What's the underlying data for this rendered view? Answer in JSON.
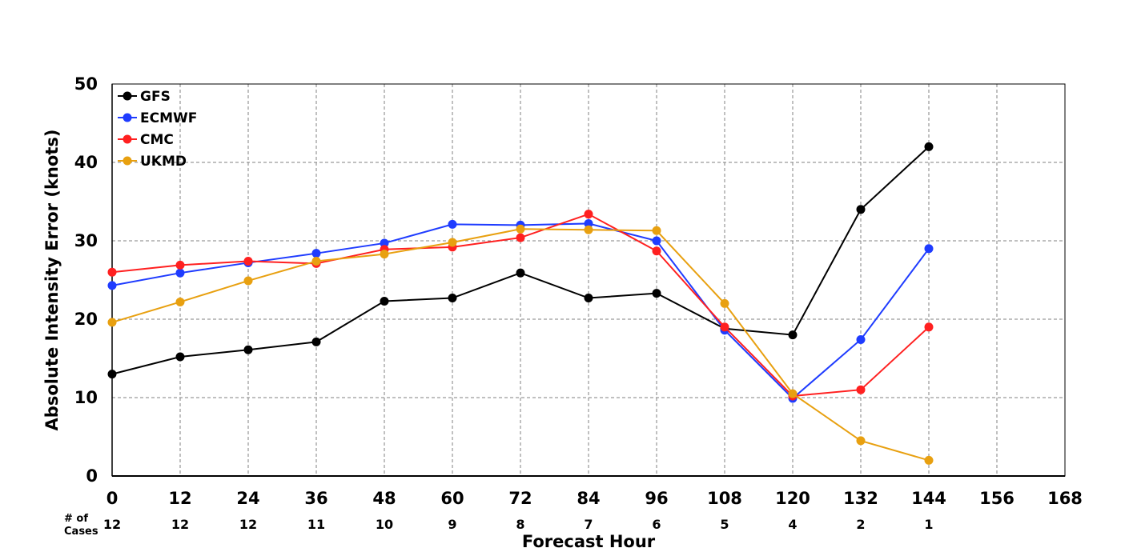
{
  "chart_data": {
    "type": "line",
    "title": "",
    "xlabel": "Forecast Hour",
    "ylabel": "Absolute Intensity Error (knots)",
    "xlim": [
      0,
      168
    ],
    "ylim": [
      0,
      50
    ],
    "x_ticks": [
      0,
      12,
      24,
      36,
      48,
      60,
      72,
      84,
      96,
      108,
      120,
      132,
      144,
      156,
      168
    ],
    "y_ticks": [
      0,
      10,
      20,
      30,
      40,
      50
    ],
    "grid": true,
    "legend_position": "top-left",
    "cases_label": [
      "# of",
      "Cases"
    ],
    "cases": [
      12,
      12,
      12,
      11,
      10,
      9,
      8,
      7,
      6,
      5,
      4,
      2,
      1
    ],
    "cases_x": [
      0,
      12,
      24,
      36,
      48,
      60,
      72,
      84,
      96,
      108,
      120,
      132,
      144
    ],
    "series": [
      {
        "name": "GFS",
        "color": "#000000",
        "x": [
          0,
          12,
          24,
          36,
          48,
          60,
          72,
          84,
          96,
          108,
          120,
          132,
          144
        ],
        "values": [
          13.0,
          15.2,
          16.1,
          17.1,
          22.3,
          22.7,
          25.9,
          22.7,
          23.3,
          18.8,
          18.0,
          34.0,
          42.0
        ]
      },
      {
        "name": "ECMWF",
        "color": "#1f3cff",
        "x": [
          0,
          12,
          24,
          36,
          48,
          60,
          72,
          84,
          96,
          108,
          120,
          132,
          144
        ],
        "values": [
          24.3,
          25.9,
          27.2,
          28.4,
          29.7,
          32.1,
          32.0,
          32.2,
          30.0,
          18.6,
          9.9,
          17.4,
          29.0
        ]
      },
      {
        "name": "CMC",
        "color": "#ff2020",
        "x": [
          0,
          12,
          24,
          36,
          48,
          60,
          72,
          84,
          96,
          108,
          120,
          132,
          144
        ],
        "values": [
          26.0,
          26.9,
          27.4,
          27.1,
          28.9,
          29.2,
          30.4,
          33.4,
          28.7,
          19.0,
          10.2,
          11.0,
          19.0
        ]
      },
      {
        "name": "UKMD",
        "color": "#e8a010",
        "x": [
          0,
          12,
          24,
          36,
          48,
          60,
          72,
          84,
          96,
          108,
          120,
          132,
          144
        ],
        "values": [
          19.6,
          22.2,
          24.9,
          27.4,
          28.3,
          29.8,
          31.5,
          31.4,
          31.3,
          22.0,
          10.5,
          4.5,
          2.0
        ]
      }
    ]
  }
}
